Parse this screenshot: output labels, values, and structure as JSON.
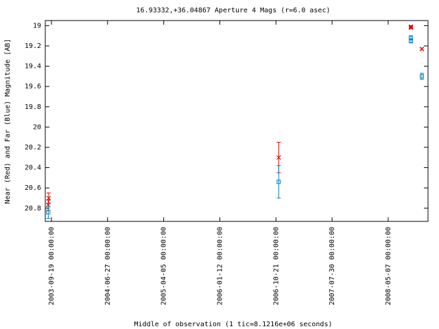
{
  "chart_data": {
    "type": "errorbar",
    "title": "16.93332,+36.04867   Aperture 4 Mags (r=6.0 asec)",
    "y_label": "Near (Red) and Far (Blue) Magnitude [AB]",
    "x_label": "Middle of observation (1 tic=8.1216e+06 seconds)",
    "xlim": [
      "2003-08-19",
      "2008-11-23"
    ],
    "xticks": [
      "2003-09-19 00:00:00",
      "2004-06-27 00:00:00",
      "2005-04-05 00:00:00",
      "2006-01-12 00:00:00",
      "2006-10-21 00:00:00",
      "2007-07-30 00:00:00",
      "2008-05-07 00:00:00"
    ],
    "ylim": [
      20.93,
      18.95
    ],
    "yticks": [
      19,
      19.2,
      19.4,
      19.6,
      19.8,
      20,
      20.2,
      20.4,
      20.6,
      20.8
    ],
    "series": [
      {
        "color": "#e00000",
        "marker": "cross",
        "x": [
          "2003-09-03",
          "2003-09-05",
          "2006-11-04",
          "2008-08-29",
          "2008-08-29",
          "2008-10-23"
        ],
        "values": [
          20.77,
          20.7,
          20.3,
          19.01,
          19.02,
          19.23
        ],
        "errors": [
          0.05,
          0.05,
          0.15,
          0.01,
          0.01,
          0.01
        ]
      },
      {
        "color": "#0080c0",
        "marker": "square",
        "x": [
          "2003-09-03",
          "2006-11-04",
          "2008-08-29",
          "2008-08-29",
          "2008-10-23"
        ],
        "values": [
          20.84,
          20.54,
          19.12,
          19.15,
          19.5
        ],
        "errors": [
          0.06,
          0.16,
          0.02,
          0.02,
          0.03
        ]
      }
    ]
  }
}
